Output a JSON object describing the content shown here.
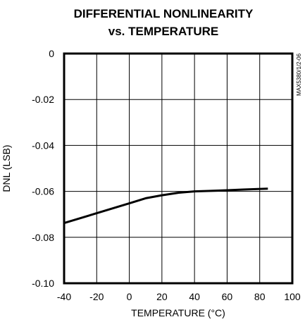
{
  "chart_data": {
    "type": "line",
    "title_line1": "DIFFERENTIAL NONLINEARITY",
    "title_line2": "vs. TEMPERATURE",
    "xlabel": "TEMPERATURE (°C)",
    "ylabel": "DNL (LSB)",
    "figure_code": "MAX5380/1/2-06",
    "xlim": [
      -40,
      100
    ],
    "ylim": [
      -0.1,
      0
    ],
    "x_ticks": [
      "-40",
      "-20",
      "0",
      "20",
      "40",
      "60",
      "80",
      "100"
    ],
    "y_ticks": [
      "0",
      "-0.02",
      "-0.04",
      "-0.06",
      "-0.08",
      "-0.10"
    ],
    "grid": true,
    "series": [
      {
        "x": [
          -40,
          -20,
          0,
          10,
          20,
          30,
          40,
          50,
          60,
          70,
          85
        ],
        "y": [
          -0.0738,
          -0.0695,
          -0.0652,
          -0.063,
          -0.0617,
          -0.0606,
          -0.06,
          -0.0598,
          -0.0595,
          -0.0592,
          -0.0588
        ]
      }
    ]
  }
}
